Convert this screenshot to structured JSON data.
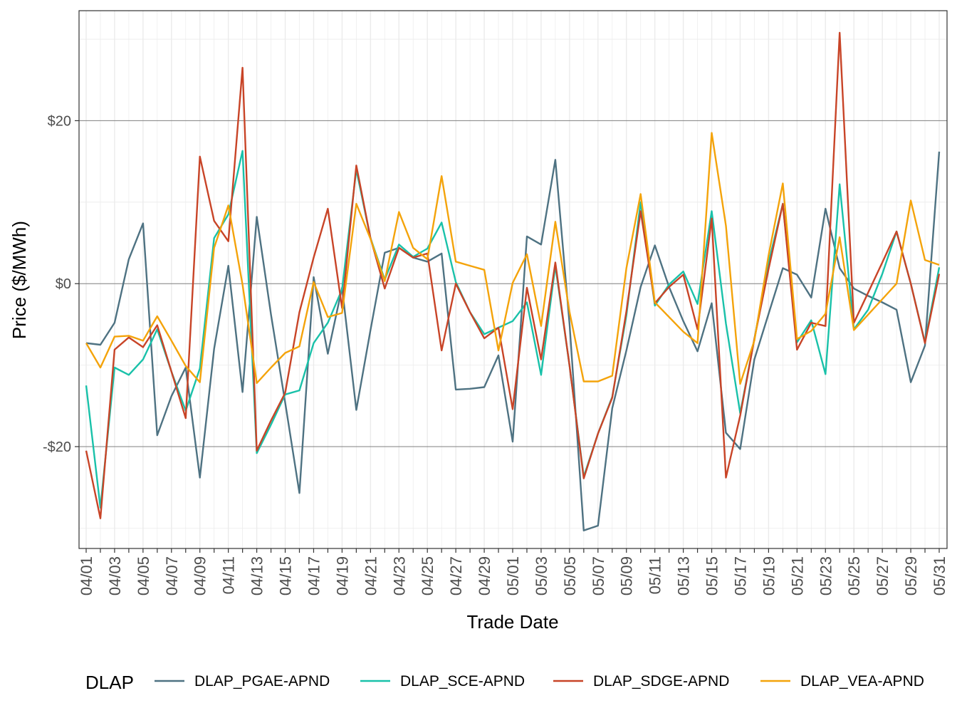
{
  "chart_data": {
    "type": "line",
    "xlabel": "Trade Date",
    "ylabel": "Price ($/MWh)",
    "legend_title": "DLAP",
    "legend_position": "bottom",
    "grid": true,
    "ylim": [
      -32.5,
      33.5
    ],
    "y_ticks": [
      -20,
      0,
      20
    ],
    "y_tick_labels": [
      "-$20",
      "$0",
      "$20"
    ],
    "x_tick_labels": [
      "04/01",
      "04/03",
      "04/05",
      "04/07",
      "04/09",
      "04/11",
      "04/13",
      "04/15",
      "04/17",
      "04/19",
      "04/21",
      "04/23",
      "04/25",
      "04/27",
      "04/29",
      "05/01",
      "05/03",
      "05/05",
      "05/07",
      "05/09",
      "05/11",
      "05/13",
      "05/15",
      "05/17",
      "05/19",
      "05/21",
      "05/23",
      "05/25",
      "05/27",
      "05/29",
      "05/31"
    ],
    "x": [
      "04/01",
      "04/02",
      "04/03",
      "04/04",
      "04/05",
      "04/06",
      "04/07",
      "04/08",
      "04/09",
      "04/10",
      "04/11",
      "04/12",
      "04/13",
      "04/14",
      "04/15",
      "04/16",
      "04/17",
      "04/18",
      "04/19",
      "04/20",
      "04/21",
      "04/22",
      "04/23",
      "04/24",
      "04/25",
      "04/26",
      "04/27",
      "04/28",
      "04/29",
      "04/30",
      "05/01",
      "05/02",
      "05/03",
      "05/04",
      "05/05",
      "05/06",
      "05/07",
      "05/08",
      "05/09",
      "05/10",
      "05/11",
      "05/12",
      "05/13",
      "05/14",
      "05/15",
      "05/16",
      "05/17",
      "05/18",
      "05/19",
      "05/20",
      "05/21",
      "05/22",
      "05/23",
      "05/24",
      "05/25",
      "05/26",
      "05/27",
      "05/28",
      "05/29",
      "05/30",
      "05/31"
    ],
    "series": [
      {
        "name": "DLAP_PGAE-APND",
        "color": "#4e7282",
        "values": [
          -7.3,
          -7.5,
          -4.8,
          3.0,
          7.4,
          -18.6,
          -13.8,
          -10.3,
          -23.8,
          -8.0,
          2.2,
          -13.3,
          8.2,
          -3.8,
          -14.6,
          -25.7,
          0.8,
          -8.6,
          -0.5,
          -15.5,
          -5.7,
          3.8,
          4.4,
          3.2,
          2.7,
          3.7,
          -13.0,
          -12.9,
          -12.7,
          -8.8,
          -19.4,
          5.8,
          4.8,
          15.2,
          -5.0,
          -30.3,
          -29.7,
          -15.3,
          -8.2,
          -0.4,
          4.7,
          -0.4,
          -4.6,
          -8.3,
          -2.4,
          -18.3,
          -20.3,
          -9.3,
          -3.7,
          1.9,
          1.1,
          -1.7,
          9.2,
          1.9,
          -0.6,
          -1.5,
          -2.3,
          -3.2,
          -12.1,
          -7.6,
          16.2
        ]
      },
      {
        "name": "DLAP_SCE-APND",
        "color": "#19c1a9",
        "values": [
          -12.5,
          -27.5,
          -10.3,
          -11.2,
          -9.3,
          -5.6,
          -10.8,
          -15.6,
          -10.4,
          5.6,
          8.5,
          16.3,
          -20.8,
          -17.3,
          -13.6,
          -13.1,
          -7.3,
          -4.8,
          -0.7,
          14.0,
          5.6,
          0.5,
          4.8,
          3.3,
          4.3,
          7.5,
          0.2,
          -3.5,
          -6.2,
          -5.4,
          -4.6,
          -2.3,
          -11.2,
          2.2,
          -10.1,
          -23.7,
          -18.4,
          -13.9,
          -3.9,
          10.0,
          -2.7,
          -0.1,
          1.5,
          -2.5,
          8.9,
          -4.9,
          -15.9,
          -6.8,
          2.6,
          9.8,
          -7.2,
          -4.5,
          -11.1,
          12.2,
          -5.6,
          -3.2,
          1.2,
          6.4,
          0.0,
          -7.2,
          2.0
        ]
      },
      {
        "name": "DLAP_SDGE-APND",
        "color": "#c84427",
        "values": [
          -20.5,
          -28.8,
          -8.1,
          -6.6,
          -7.8,
          -5.1,
          -10.8,
          -16.5,
          15.6,
          7.7,
          5.2,
          26.5,
          -20.5,
          -16.8,
          -13.4,
          -3.5,
          3.2,
          9.2,
          -3.0,
          14.5,
          5.6,
          -0.6,
          4.4,
          3.2,
          3.7,
          -8.2,
          0.0,
          -3.5,
          -6.7,
          -5.4,
          -15.4,
          -0.5,
          -9.3,
          2.6,
          -10.1,
          -23.9,
          -18.4,
          -14.0,
          -3.4,
          8.9,
          -2.4,
          -0.4,
          1.1,
          -5.6,
          8.0,
          -23.8,
          -16.2,
          -6.8,
          1.8,
          9.8,
          -8.1,
          -4.8,
          -5.2,
          30.8,
          -4.8,
          -1.1,
          2.6,
          6.4,
          0.0,
          -7.3,
          1.2
        ]
      },
      {
        "name": "DLAP_VEA-APND",
        "color": "#f4a30a",
        "values": [
          -7.3,
          -10.3,
          -6.5,
          -6.4,
          -7.0,
          -4.0,
          -7.0,
          -10.1,
          -12.1,
          4.4,
          9.6,
          -0.1,
          -12.2,
          -10.3,
          -8.5,
          -7.7,
          0.2,
          -4.1,
          -3.6,
          9.8,
          5.5,
          0.3,
          8.8,
          4.4,
          3.0,
          13.2,
          2.7,
          2.2,
          1.7,
          -8.2,
          0.1,
          3.6,
          -5.2,
          7.6,
          -3.5,
          -12.0,
          -12.0,
          -11.3,
          1.9,
          11.0,
          -2.3,
          -4.1,
          -5.9,
          -7.3,
          18.5,
          7.1,
          -12.3,
          -7.0,
          3.5,
          12.3,
          -6.8,
          -5.8,
          -3.7,
          5.7,
          -5.7,
          -3.8,
          -1.9,
          0.0,
          10.2,
          2.9,
          2.3
        ]
      }
    ]
  }
}
